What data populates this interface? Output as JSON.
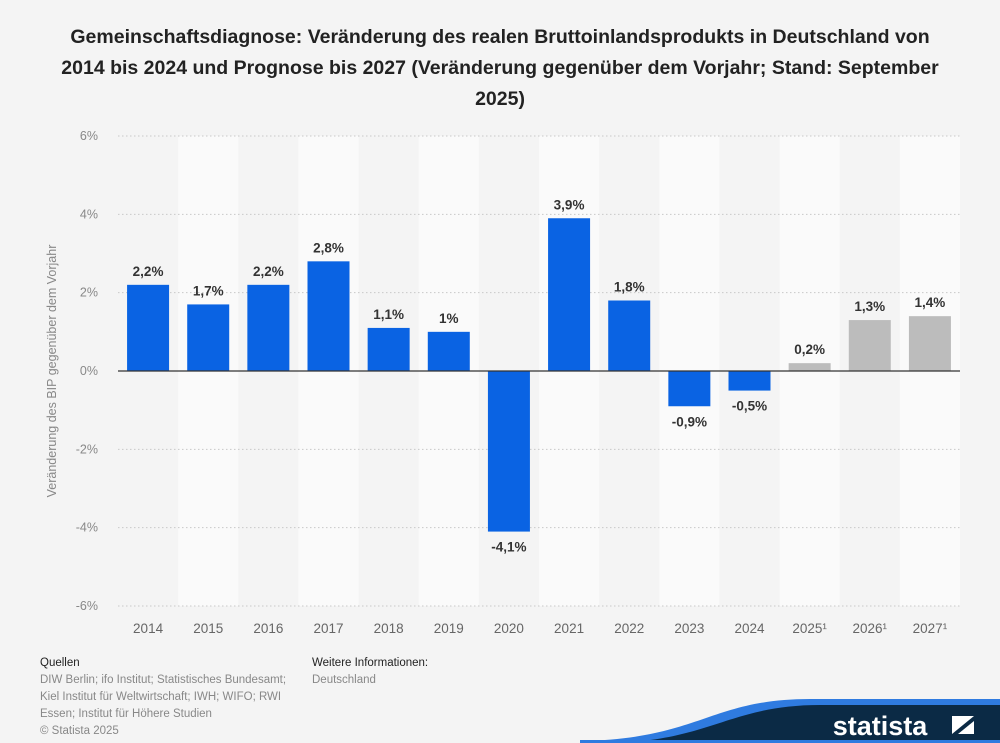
{
  "colors": {
    "actual": "#0a63e3",
    "forecast": "#bcbcbc",
    "background": "#f4f4f4",
    "band": "#fafafa",
    "logo_dark": "#0b2a45",
    "logo_blue": "#2f7be0"
  },
  "chart_data": {
    "type": "bar",
    "title": "Gemeinschaftsdiagnose: Veränderung des realen Bruttoinlandsprodukts in Deutschland von 2014 bis 2024 und Prognose bis 2027 (Veränderung gegenüber dem Vorjahr; Stand: September 2025)",
    "xlabel": "",
    "ylabel": "Veränderung des BIP gegenüber dem Vorjahr",
    "categories": [
      "2014",
      "2015",
      "2016",
      "2017",
      "2018",
      "2019",
      "2020",
      "2021",
      "2022",
      "2023",
      "2024",
      "2025¹",
      "2026¹",
      "2027¹"
    ],
    "values": [
      2.2,
      1.7,
      2.2,
      2.8,
      1.1,
      1.0,
      -4.1,
      3.9,
      1.8,
      -0.9,
      -0.5,
      0.2,
      1.3,
      1.4
    ],
    "data_labels": [
      "2,2%",
      "1,7%",
      "2,2%",
      "2,8%",
      "1,1%",
      "1%",
      "-4,1%",
      "3,9%",
      "1,8%",
      "-0,9%",
      "-0,5%",
      "0,2%",
      "1,3%",
      "1,4%"
    ],
    "forecast": [
      false,
      false,
      false,
      false,
      false,
      false,
      false,
      false,
      false,
      false,
      false,
      true,
      true,
      true
    ],
    "ylim": [
      -6,
      6
    ],
    "yticks": [
      6,
      4,
      2,
      0,
      -2,
      -4,
      -6
    ],
    "ytick_labels": [
      "6%",
      "4%",
      "2%",
      "0%",
      "-2%",
      "-4%",
      "-6%"
    ],
    "grid": true,
    "legend": "none"
  },
  "footer": {
    "sources_heading": "Quellen",
    "sources_lines": [
      "DIW Berlin; ifo Institut; Statistisches Bundesamt;",
      "Kiel Institut für Weltwirtschaft; IWH; WIFO; RWI",
      "Essen; Institut für Höhere Studien"
    ],
    "copyright": "© Statista 2025",
    "info_heading": "Weitere Informationen:",
    "info_text": "Deutschland"
  },
  "logo": {
    "text": "statista"
  }
}
